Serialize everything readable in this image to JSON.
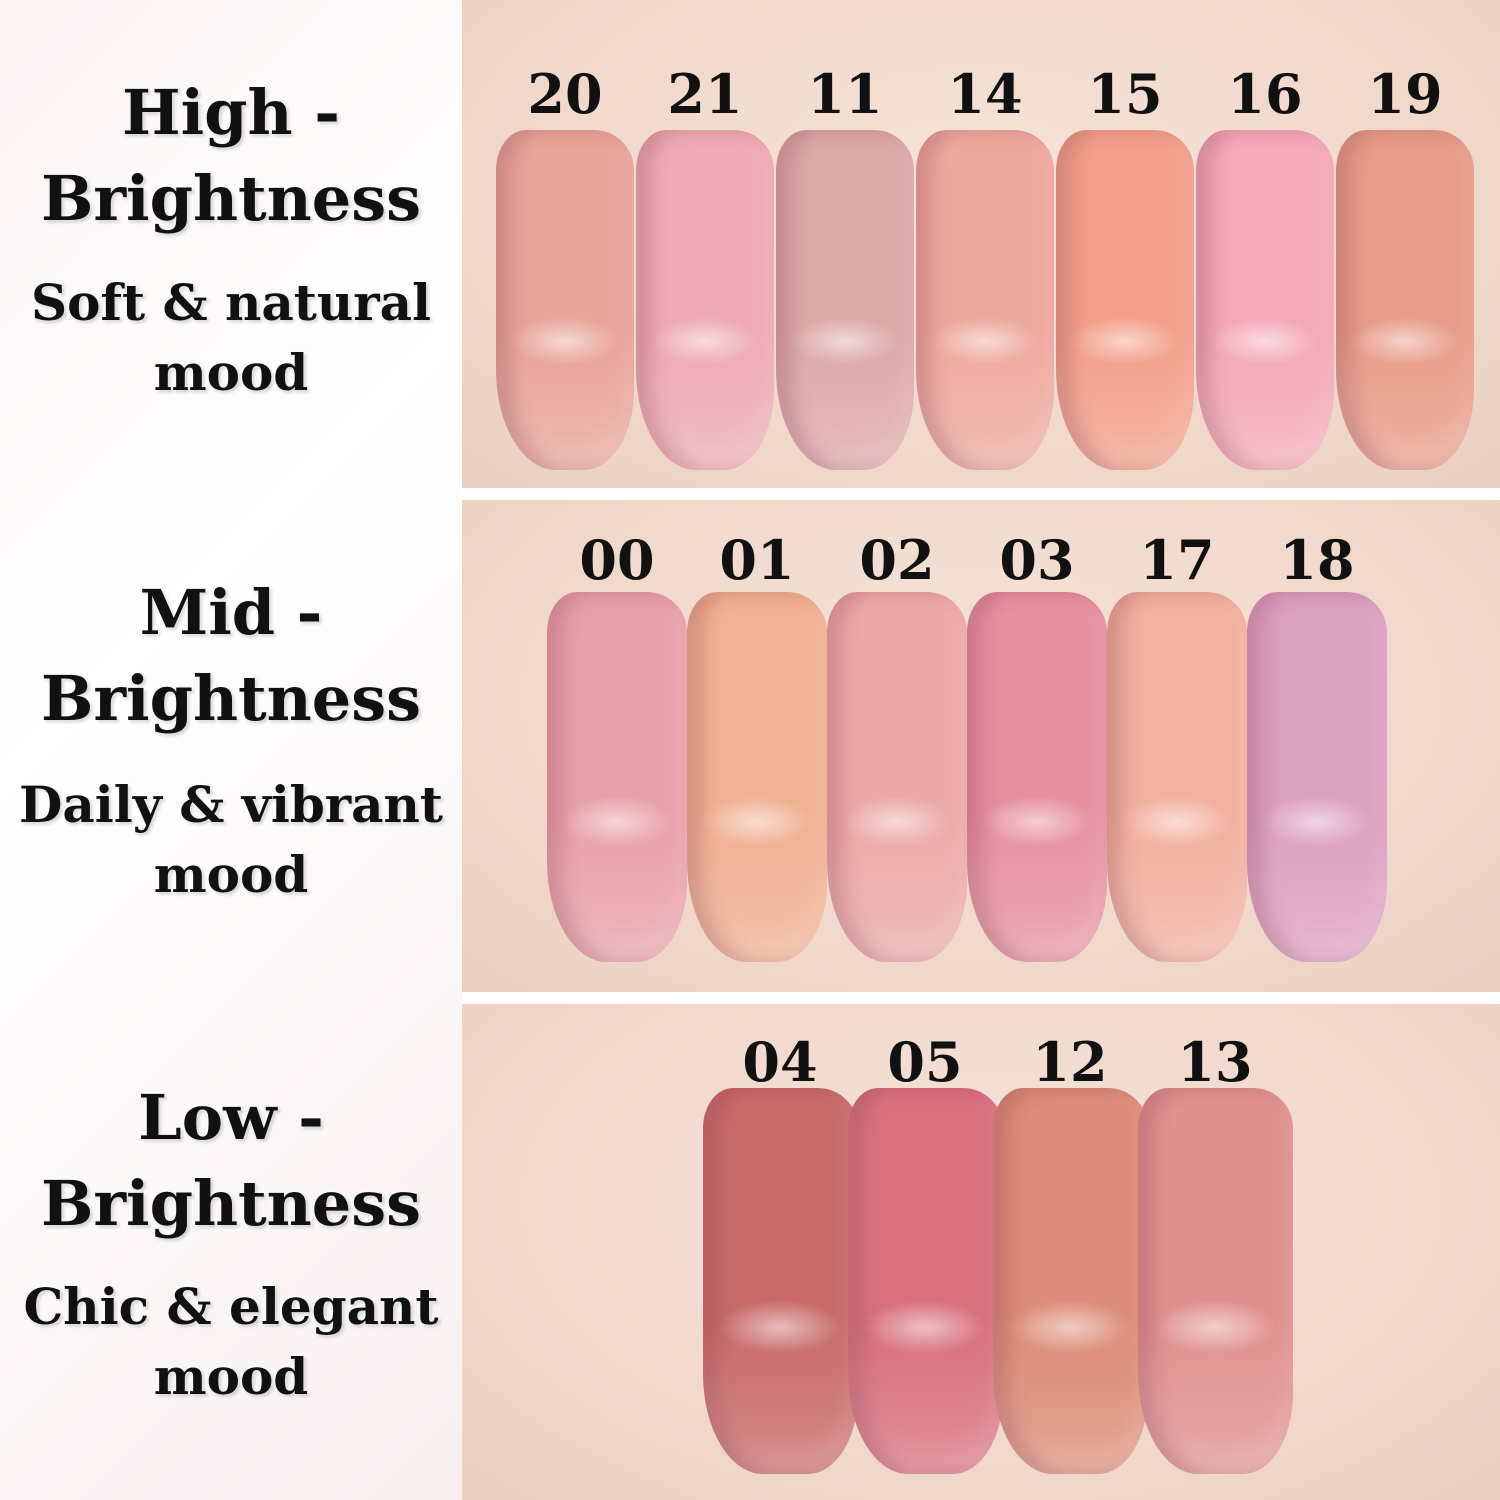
{
  "groups": [
    {
      "title_1": "High -",
      "title_2": "Brightness",
      "subtitle_1": "Soft & natural",
      "subtitle_2": "mood",
      "shades": [
        {
          "number": "20",
          "color": "#e8a49a"
        },
        {
          "number": "21",
          "color": "#eeaab4"
        },
        {
          "number": "11",
          "color": "#dca8a8"
        },
        {
          "number": "14",
          "color": "#eda89e"
        },
        {
          "number": "15",
          "color": "#f2a08a"
        },
        {
          "number": "16",
          "color": "#f4a8ba"
        },
        {
          "number": "19",
          "color": "#e89c8a"
        }
      ]
    },
    {
      "title_1": "Mid -",
      "title_2": "Brightness",
      "subtitle_1": "Daily & vibrant",
      "subtitle_2": "mood",
      "shades": [
        {
          "number": "00",
          "color": "#e8a0a8"
        },
        {
          "number": "01",
          "color": "#f0b092"
        },
        {
          "number": "02",
          "color": "#eca8a8"
        },
        {
          "number": "03",
          "color": "#e690a0"
        },
        {
          "number": "17",
          "color": "#f2b0a0"
        },
        {
          "number": "18",
          "color": "#dca0c0"
        }
      ]
    },
    {
      "title_1": "Low -",
      "title_2": "Brightness",
      "subtitle_1": "Chic & elegant",
      "subtitle_2": "mood",
      "shades": [
        {
          "number": "04",
          "color": "#c86a6a"
        },
        {
          "number": "05",
          "color": "#d8707e"
        },
        {
          "number": "12",
          "color": "#dc8c78"
        },
        {
          "number": "13",
          "color": "#e09090"
        }
      ]
    }
  ]
}
